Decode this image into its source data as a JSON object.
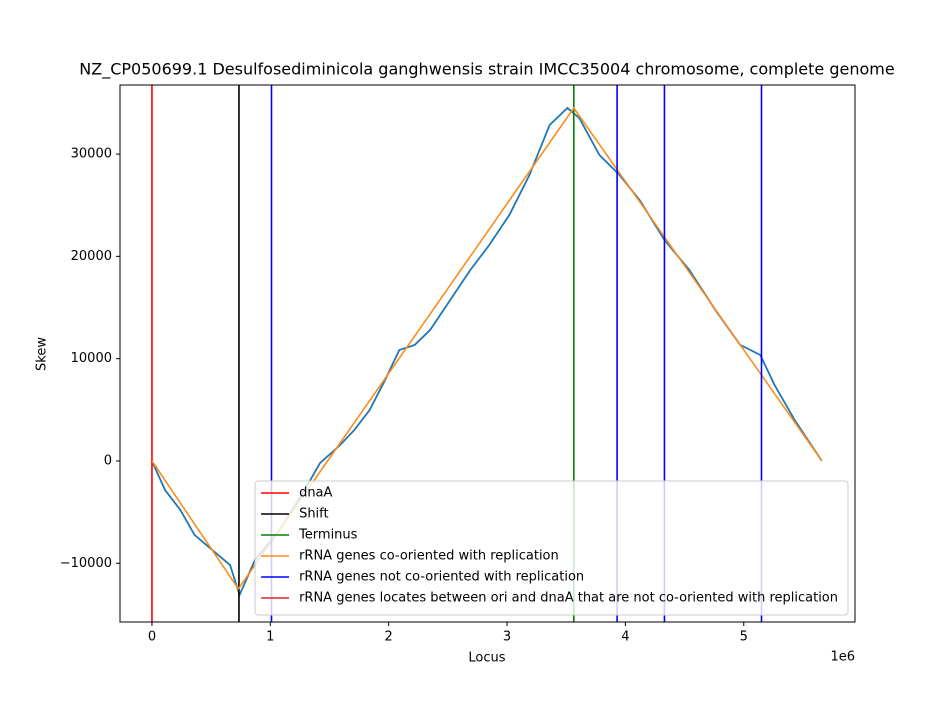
{
  "chart_data": {
    "type": "line",
    "title": "NZ_CP050699.1 Desulfosediminicola ganghwensis strain IMCC35004 chromosome, complete genome",
    "xlabel": "Locus",
    "ylabel": "Skew",
    "x_offset_label": "1e6",
    "xlim": [
      -270000,
      5940000
    ],
    "ylim": [
      -15740,
      36750
    ],
    "xticks": [
      {
        "value": 0,
        "label": "0"
      },
      {
        "value": 1000000,
        "label": "1"
      },
      {
        "value": 2000000,
        "label": "2"
      },
      {
        "value": 3000000,
        "label": "3"
      },
      {
        "value": 4000000,
        "label": "4"
      },
      {
        "value": 5000000,
        "label": "5"
      }
    ],
    "yticks": [
      {
        "value": -10000,
        "label": "−10000"
      },
      0,
      10000,
      20000,
      30000
    ],
    "legend": "lower right",
    "skew": {
      "color": "#1f77b4",
      "x": [
        0,
        110000,
        240000,
        360000,
        530000,
        660000,
        740000,
        870000,
        1080000,
        1290000,
        1420000,
        1590000,
        1710000,
        1840000,
        1970000,
        2090000,
        2220000,
        2350000,
        2520000,
        2690000,
        2850000,
        3020000,
        3190000,
        3360000,
        3510000,
        3610000,
        3780000,
        3950000,
        4120000,
        4330000,
        4540000,
        4760000,
        4970000,
        5140000,
        5260000,
        5430000,
        5660000
      ],
      "values": [
        0,
        -2830,
        -4790,
        -7230,
        -8900,
        -10170,
        -13100,
        -9680,
        -6740,
        -2830,
        -200,
        1560,
        3030,
        4990,
        7920,
        10850,
        11340,
        12800,
        15740,
        18670,
        21110,
        24050,
        27960,
        32840,
        34500,
        33530,
        29920,
        27960,
        25510,
        21600,
        18670,
        14760,
        11340,
        10360,
        7430,
        4010,
        0
      ]
    },
    "series": [
      {
        "name": "dnaA",
        "color": "#ff0000",
        "kind": "vline",
        "x": [
          0
        ]
      },
      {
        "name": "Shift",
        "color": "#000000",
        "kind": "vline",
        "x": [
          735000
        ]
      },
      {
        "name": "Terminus",
        "color": "#008000",
        "kind": "vline",
        "x": [
          3564000
        ]
      },
      {
        "name": "rRNA genes co-oriented with replication",
        "color": "#ff8c1a",
        "kind": "line",
        "x": [
          0,
          730000,
          3564000,
          5660000
        ],
        "values": [
          0,
          -12500,
          34500,
          0
        ]
      },
      {
        "name": "rRNA genes not co-oriented with replication",
        "color": "#0000ff",
        "kind": "vline",
        "x": [
          1010000,
          3930000,
          4330000,
          5150000
        ]
      },
      {
        "name": "rRNA genes locates between ori and dnaA that are not co-oriented with replication",
        "color": "#d62728",
        "kind": "vline",
        "x": []
      }
    ]
  }
}
